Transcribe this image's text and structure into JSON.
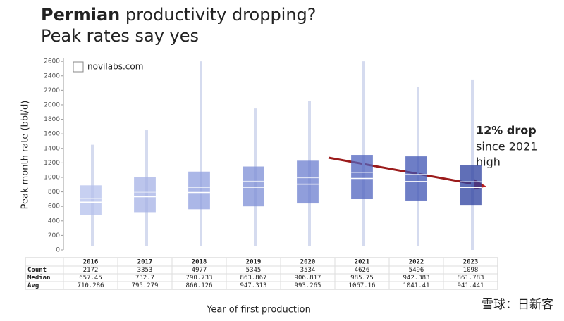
{
  "chart_data": {
    "type": "box",
    "title_bold": "Permian",
    "title_rest": "productivity dropping?",
    "subtitle": "Peak rates say yes",
    "source": "novilabs.com",
    "y_label": "Peak month rate (bbl/d)",
    "x_label": "Year of first production",
    "annotation": [
      "12% drop",
      "since 2021",
      "high"
    ],
    "watermark": "雪球：日新客",
    "categories": [
      "2016",
      "2017",
      "2018",
      "2019",
      "2020",
      "2021",
      "2022",
      "2023"
    ],
    "colors": [
      "#b4c0ec",
      "#a5b2e6",
      "#8f9fdf",
      "#7c8dd6",
      "#6b7ecf",
      "#4f63bf",
      "#3e53b3",
      "#2b3f9f"
    ],
    "q1": [
      480,
      520,
      560,
      600,
      640,
      700,
      680,
      620
    ],
    "q3": [
      890,
      1000,
      1080,
      1150,
      1230,
      1310,
      1290,
      1170
    ],
    "whisker_low": [
      50,
      50,
      50,
      50,
      50,
      50,
      50,
      0
    ],
    "whisker_high": [
      1450,
      1650,
      2600,
      1950,
      2050,
      2600,
      2250,
      2350
    ],
    "row_labels": [
      "Count",
      "Median",
      "Avg"
    ],
    "count": [
      2172,
      3353,
      4977,
      5345,
      3534,
      4626,
      5496,
      1098
    ],
    "median": [
      657.45,
      732.7,
      790.733,
      863.867,
      906.817,
      985.75,
      942.383,
      861.783
    ],
    "avg": [
      710.286,
      795.279,
      860.126,
      947.313,
      993.265,
      1067.16,
      1041.41,
      941.441
    ],
    "ylim": [
      0,
      2650
    ],
    "yticks": [
      0,
      200,
      400,
      600,
      800,
      1000,
      1200,
      1400,
      1600,
      1800,
      2000,
      2200,
      2400,
      2600
    ]
  }
}
